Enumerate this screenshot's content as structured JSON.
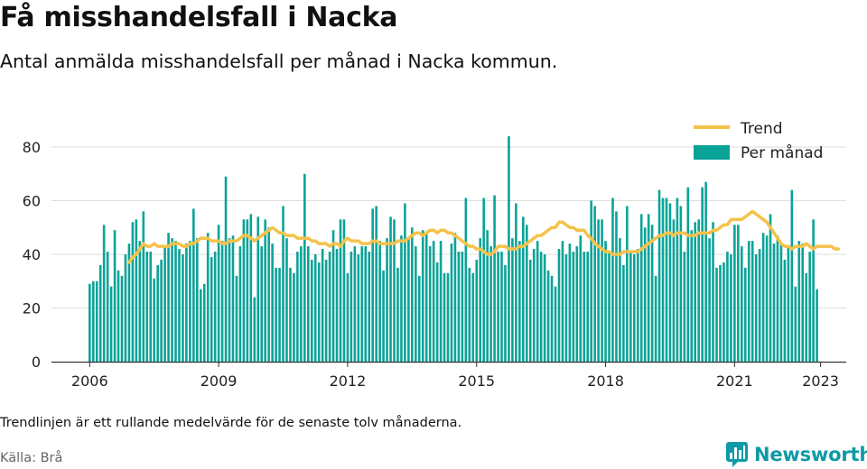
{
  "title": "Få misshandelsfall i Nacka",
  "subtitle": "Antal anmälda misshandelsfall per månad i Nacka kommun.",
  "footnote": "Trendlinjen är ett rullande medelvärde för de senaste tolv månaderna.",
  "source": "Källa: Brå",
  "brand": {
    "name": "Newsworthy",
    "color": "#0e9aa7",
    "icon": "newsworthy-bar-chart-icon"
  },
  "colors": {
    "bar": "#0aa398",
    "trend": "#f5c24a",
    "grid": "#dddddd",
    "axis": "#333333"
  },
  "chart_data": {
    "type": "bar",
    "start": "2006-01",
    "x_ticks": [
      "2006",
      "2009",
      "2012",
      "2015",
      "2018",
      "2021",
      "2023"
    ],
    "ylim": [
      0,
      90
    ],
    "yticks": [
      0,
      20,
      40,
      60,
      80
    ],
    "grid": true,
    "legend": "top-right",
    "series": [
      {
        "name": "Per månad",
        "kind": "bar",
        "values": [
          29,
          30,
          30,
          36,
          51,
          41,
          28,
          49,
          34,
          32,
          40,
          44,
          52,
          53,
          45,
          56,
          41,
          41,
          31,
          36,
          38,
          43,
          48,
          46,
          45,
          42,
          40,
          44,
          45,
          57,
          46,
          27,
          29,
          48,
          39,
          41,
          51,
          45,
          69,
          46,
          47,
          32,
          43,
          53,
          53,
          55,
          24,
          54,
          43,
          53,
          50,
          44,
          35,
          35,
          58,
          46,
          35,
          33,
          41,
          43,
          70,
          43,
          38,
          40,
          37,
          42,
          38,
          41,
          49,
          42,
          53,
          53,
          33,
          41,
          43,
          40,
          43,
          43,
          41,
          57,
          58,
          45,
          34,
          46,
          54,
          53,
          35,
          47,
          59,
          46,
          50,
          43,
          32,
          49,
          48,
          43,
          45,
          37,
          45,
          33,
          33,
          44,
          48,
          41,
          41,
          61,
          35,
          33,
          38,
          46,
          61,
          49,
          43,
          62,
          41,
          41,
          36,
          84,
          46,
          59,
          45,
          54,
          51,
          38,
          42,
          45,
          41,
          40,
          34,
          32,
          28,
          42,
          45,
          40,
          44,
          41,
          43,
          47,
          41,
          41,
          60,
          58,
          53,
          53,
          45,
          41,
          61,
          56,
          46,
          36,
          58,
          41,
          40,
          42,
          55,
          50,
          55,
          51,
          32,
          64,
          61,
          61,
          59,
          53,
          61,
          58,
          41,
          65,
          49,
          52,
          53,
          65,
          67,
          46,
          52,
          35,
          36,
          37,
          41,
          40,
          51,
          51,
          43,
          35,
          45,
          45,
          40,
          42,
          48,
          47,
          55,
          44,
          47,
          44,
          38,
          43,
          64,
          28,
          45,
          44,
          33,
          41,
          53,
          27
        ],
        "color": "#0aa398"
      },
      {
        "name": "Trend",
        "kind": "line",
        "start_index": 11,
        "values": [
          37,
          39,
          40,
          42,
          44,
          43,
          43,
          44,
          43,
          43,
          43,
          43,
          44,
          44,
          44,
          43,
          43,
          44,
          44,
          45,
          46,
          46,
          46,
          45,
          45,
          45,
          44,
          44,
          45,
          45,
          45,
          46,
          47,
          47,
          46,
          45,
          46,
          47,
          48,
          49,
          50,
          49,
          48,
          48,
          47,
          47,
          47,
          46,
          46,
          46,
          46,
          45,
          45,
          44,
          44,
          44,
          43,
          44,
          44,
          43,
          45,
          46,
          45,
          45,
          45,
          44,
          44,
          44,
          45,
          45,
          44,
          44,
          44,
          44,
          44,
          45,
          45,
          45,
          46,
          47,
          48,
          48,
          47,
          48,
          49,
          49,
          48,
          49,
          49,
          48,
          48,
          47,
          46,
          45,
          44,
          43,
          43,
          42,
          42,
          41,
          40,
          40,
          41,
          43,
          43,
          43,
          42,
          42,
          42,
          43,
          43,
          44,
          45,
          46,
          47,
          47,
          48,
          49,
          50,
          50,
          52,
          52,
          51,
          50,
          50,
          49,
          49,
          49,
          47,
          46,
          44,
          43,
          42,
          41,
          41,
          40,
          40,
          40,
          41,
          41,
          41,
          41,
          41,
          42,
          43,
          44,
          45,
          46,
          47,
          47,
          48,
          48,
          47,
          48,
          48,
          48,
          47,
          47,
          47,
          48,
          48,
          48,
          48,
          49,
          49,
          50,
          51,
          51,
          53,
          53,
          53,
          53,
          54,
          55,
          56,
          55,
          54,
          53,
          52,
          50,
          48,
          46,
          44,
          43,
          43,
          42,
          43,
          43,
          43,
          44,
          43,
          42,
          43,
          43,
          43,
          43,
          43,
          42,
          42
        ],
        "color": "#f5c24a"
      }
    ]
  }
}
